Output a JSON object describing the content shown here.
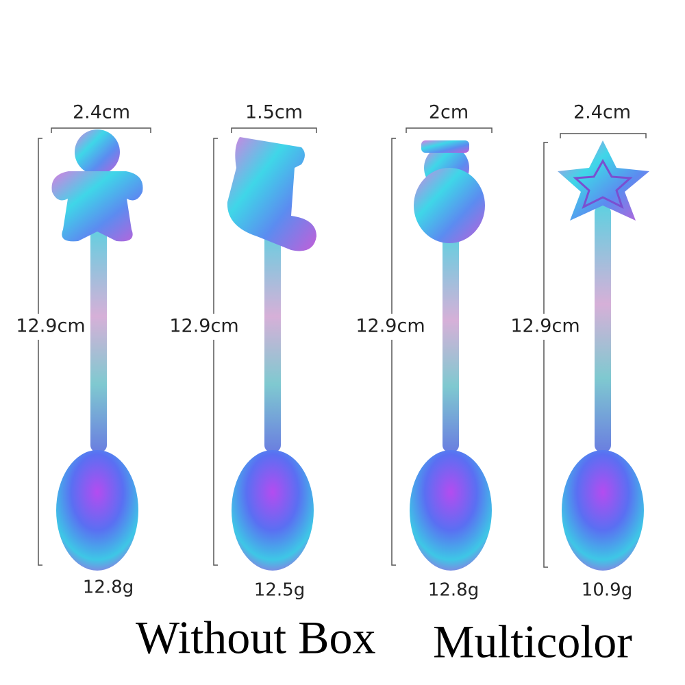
{
  "items": [
    {
      "width": "2.4cm",
      "length": "12.9cm",
      "weight": "12.8g"
    },
    {
      "width": "1.5cm",
      "length": "12.9cm",
      "weight": "12.5g"
    },
    {
      "width": "2cm",
      "length": "12.9cm",
      "weight": "12.8g"
    },
    {
      "width": "2.4cm",
      "length": "12.9cm",
      "weight": "10.9g"
    }
  ],
  "caption": {
    "box": "Without Box",
    "color": "Multicolor"
  }
}
